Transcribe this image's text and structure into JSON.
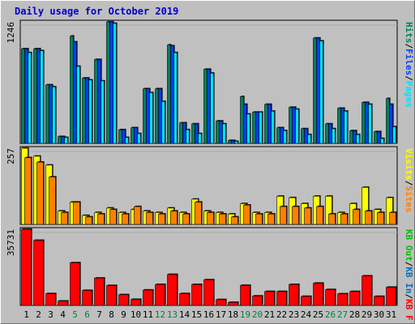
{
  "title": "Daily usage for October 2019",
  "colors": {
    "background": "#bfbfbf",
    "plot_bg": "#c0c0c0",
    "title": "#0000cc",
    "weekday_label": "#000000",
    "weekend_label": "#008040",
    "hits": "#00805c",
    "files": "#0040ff",
    "pages": "#00e0ff",
    "visits": "#ffff00",
    "sites": "#ff8000",
    "kbout": "#00c000",
    "kbin": "#0070c0",
    "kbf": "#ff0000"
  },
  "chart_data": [
    {
      "type": "bar",
      "panel": "hits-files-pages",
      "ylabel": "1246",
      "ymax": 1246,
      "categories": [
        "1",
        "2",
        "3",
        "4",
        "5",
        "6",
        "7",
        "8",
        "9",
        "10",
        "11",
        "12",
        "13",
        "14",
        "15",
        "16",
        "17",
        "18",
        "19",
        "20",
        "21",
        "22",
        "23",
        "24",
        "25",
        "26",
        "27",
        "28",
        "29",
        "30",
        "31"
      ],
      "series": [
        {
          "name": "Hits",
          "color": "#00805c",
          "values": [
            970,
            970,
            600,
            70,
            1100,
            670,
            860,
            1246,
            140,
            160,
            560,
            560,
            1010,
            210,
            200,
            760,
            230,
            30,
            480,
            320,
            400,
            160,
            370,
            150,
            1080,
            200,
            360,
            130,
            420,
            120,
            460
          ]
        },
        {
          "name": "Files",
          "color": "#0040ff",
          "values": [
            970,
            970,
            600,
            70,
            1040,
            670,
            860,
            1246,
            140,
            160,
            560,
            560,
            1000,
            210,
            200,
            760,
            230,
            30,
            400,
            320,
            400,
            160,
            370,
            150,
            1080,
            200,
            360,
            130,
            420,
            120,
            400
          ]
        },
        {
          "name": "Pages",
          "color": "#00e0ff",
          "values": [
            930,
            950,
            580,
            60,
            790,
            650,
            640,
            1230,
            60,
            100,
            520,
            430,
            930,
            140,
            100,
            720,
            200,
            20,
            300,
            320,
            330,
            130,
            350,
            90,
            1050,
            150,
            330,
            90,
            400,
            50,
            170
          ]
        }
      ]
    },
    {
      "type": "bar",
      "panel": "visits-sites",
      "ylabel": "257",
      "ymax": 257,
      "categories": [
        "1",
        "2",
        "3",
        "4",
        "5",
        "6",
        "7",
        "8",
        "9",
        "10",
        "11",
        "12",
        "13",
        "14",
        "15",
        "16",
        "17",
        "18",
        "19",
        "20",
        "21",
        "22",
        "23",
        "24",
        "25",
        "26",
        "27",
        "28",
        "29",
        "30",
        "31"
      ],
      "series": [
        {
          "name": "Visits",
          "color": "#ffff00",
          "values": [
            257,
            230,
            200,
            45,
            75,
            30,
            40,
            55,
            40,
            50,
            45,
            40,
            55,
            40,
            85,
            45,
            40,
            35,
            70,
            40,
            40,
            95,
            90,
            70,
            95,
            95,
            40,
            70,
            125,
            50,
            90
          ]
        },
        {
          "name": "Sites",
          "color": "#ff8000",
          "values": [
            225,
            210,
            160,
            40,
            75,
            25,
            35,
            50,
            35,
            60,
            40,
            35,
            45,
            35,
            75,
            40,
            35,
            25,
            65,
            35,
            35,
            60,
            60,
            55,
            60,
            35,
            35,
            50,
            45,
            40,
            40
          ]
        }
      ]
    },
    {
      "type": "bar",
      "panel": "kb",
      "ylabel": "35731",
      "ymax": 35731,
      "categories": [
        "1",
        "2",
        "3",
        "4",
        "5",
        "6",
        "7",
        "8",
        "9",
        "10",
        "11",
        "12",
        "13",
        "14",
        "15",
        "16",
        "17",
        "18",
        "19",
        "20",
        "21",
        "22",
        "23",
        "24",
        "25",
        "26",
        "27",
        "28",
        "29",
        "30",
        "31"
      ],
      "series": [
        {
          "name": "KB F",
          "color": "#ff0000",
          "values": [
            35731,
            30500,
            5500,
            2000,
            20000,
            7000,
            12800,
            9300,
            5000,
            2800,
            7200,
            9800,
            14500,
            5500,
            9800,
            12000,
            2700,
            1400,
            9400,
            4400,
            6500,
            6500,
            9800,
            4200,
            10400,
            7400,
            5400,
            6500,
            13800,
            4200,
            8500
          ]
        }
      ]
    }
  ],
  "right_labels": {
    "top": [
      {
        "text": "Hits",
        "color": "#00805c"
      },
      {
        "text": "/",
        "color": "#000000"
      },
      {
        "text": "Files",
        "color": "#0040ff"
      },
      {
        "text": "/",
        "color": "#000000"
      },
      {
        "text": "Pages",
        "color": "#00e0ff"
      }
    ],
    "mid": [
      {
        "text": "Visits",
        "color": "#ffff00"
      },
      {
        "text": "/",
        "color": "#000000"
      },
      {
        "text": "Sites",
        "color": "#ff8000"
      }
    ],
    "bot": [
      {
        "text": "KB Out",
        "color": "#00c000"
      },
      {
        "text": "/",
        "color": "#000000"
      },
      {
        "text": "KB In",
        "color": "#0070c0"
      },
      {
        "text": "/",
        "color": "#000000"
      },
      {
        "text": "KB F",
        "color": "#ff0000"
      }
    ]
  },
  "weekend_days": [
    5,
    6,
    12,
    13,
    19,
    20,
    26,
    27
  ]
}
